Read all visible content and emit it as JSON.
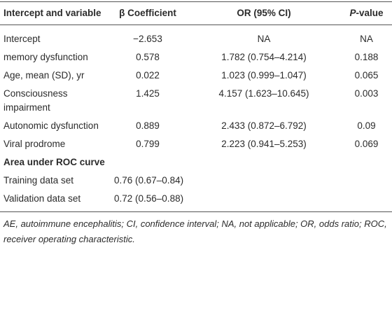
{
  "table": {
    "header": [
      "Intercept and variable",
      "β Coefficient",
      "OR (95% CI)",
      [
        "P",
        "-value"
      ]
    ],
    "rows": [
      [
        "Intercept",
        "−2.653",
        "NA",
        "NA"
      ],
      [
        "memory dysfunction",
        "0.578",
        "1.782 (0.754–4.214)",
        "0.188"
      ],
      [
        "Age, mean (SD), yr",
        "0.022",
        "1.023 (0.999–1.047)",
        "0.065"
      ],
      [
        "Consciousness impairment",
        "1.425",
        "4.157 (1.623–10.645)",
        "0.003"
      ],
      [
        "Autonomic dysfunction",
        "0.889",
        "2.433 (0.872–6.792)",
        "0.09"
      ],
      [
        "Viral prodrome",
        "0.799",
        "2.223 (0.941–5.253)",
        "0.069"
      ]
    ],
    "section_label": "Area under ROC curve",
    "auc_rows": [
      [
        "Training data set",
        "0.76 (0.67–0.84)"
      ],
      [
        "Validation data set",
        "0.72 (0.56–0.88)"
      ]
    ]
  },
  "footnote": "AE, autoimmune encephalitis; CI, confidence interval; NA, not applicable; OR, odds ratio; ROC, receiver operating characteristic."
}
